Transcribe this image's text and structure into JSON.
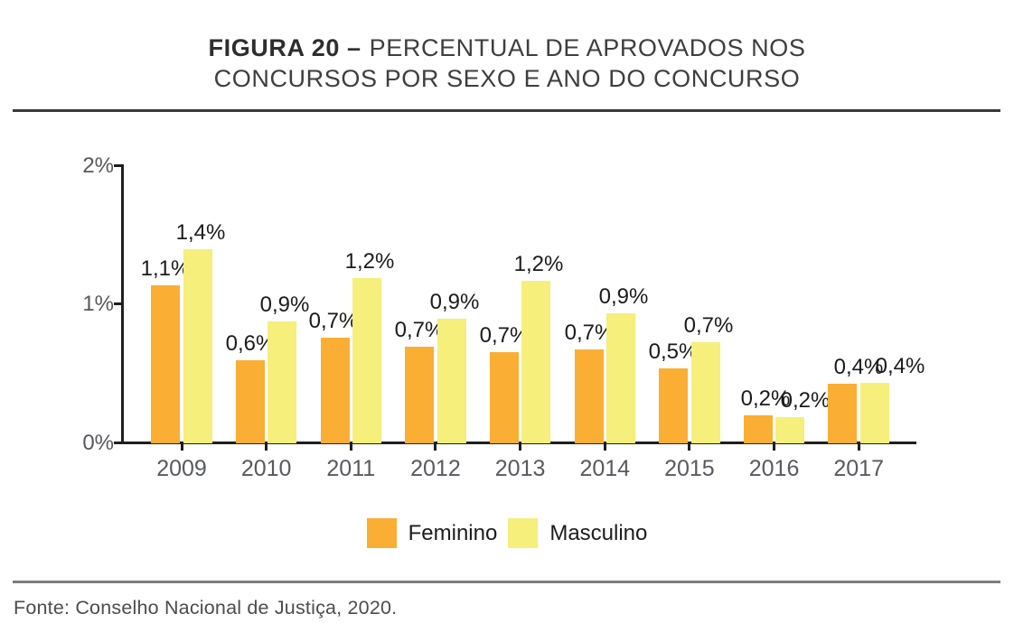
{
  "figure": {
    "title": {
      "line1_bold": "FIGURA 20 –",
      "line1_rest": "PERCENTUAL DE APROVADOS NOS",
      "line2": "CONCURSOS POR SEXO E ANO DO CONCURSO"
    },
    "source": "Fonte: Conselho Nacional de Justiça, 2020."
  },
  "colors": {
    "feminino": "#FBAE34",
    "masculino": "#F6EF7B",
    "axis": "#1F1F1F",
    "value_label": "#1B1B1B",
    "tick_label": "#57585C",
    "top_rule": "#393939",
    "bottom_rule": "#7D7D7D"
  },
  "chart_data": {
    "type": "bar",
    "title": "FIGURA 20 – PERCENTUAL DE APROVADOS NOS CONCURSOS POR SEXO E ANO DO CONCURSO",
    "categories": [
      "2009",
      "2010",
      "2011",
      "2012",
      "2013",
      "2014",
      "2015",
      "2016",
      "2017"
    ],
    "series": [
      {
        "name": "Feminino",
        "color": "#FBAE34",
        "values": [
          1.1,
          0.6,
          0.7,
          0.7,
          0.7,
          0.7,
          0.5,
          0.2,
          0.4
        ],
        "labels": [
          "1,1%",
          "0,6%",
          "0,7%",
          "0,7%",
          "0,7%",
          "0,7%",
          "0,5%",
          "0,2%",
          "0,4%"
        ],
        "values_est": [
          1.14,
          0.6,
          0.76,
          0.7,
          0.66,
          0.68,
          0.54,
          0.2,
          0.43
        ]
      },
      {
        "name": "Masculino",
        "color": "#F6EF7B",
        "values": [
          1.4,
          0.9,
          1.2,
          0.9,
          1.2,
          0.9,
          0.7,
          0.2,
          0.4
        ],
        "labels": [
          "1,4%",
          "0,9%",
          "1,2%",
          "0,9%",
          "1,2%",
          "0,9%",
          "0,7%",
          "0,2%",
          "0,4%"
        ],
        "values_est": [
          1.4,
          0.88,
          1.19,
          0.9,
          1.17,
          0.94,
          0.73,
          0.19,
          0.435
        ]
      }
    ],
    "xlabel": "",
    "ylabel": "",
    "ylim": [
      0,
      2
    ],
    "yticks": [
      {
        "value": 0,
        "label": "0%"
      },
      {
        "value": 1,
        "label": "1%"
      },
      {
        "value": 2,
        "label": "2%"
      }
    ],
    "grid": false,
    "legend_position": "bottom"
  }
}
